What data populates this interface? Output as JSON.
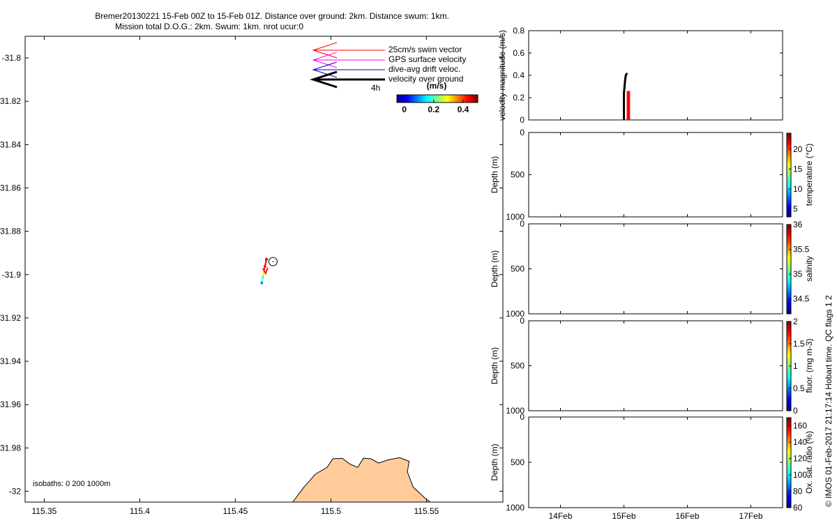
{
  "title": {
    "line1": "Bremer20130221 15-Feb 00Z to 15-Feb 01Z. Distance over ground: 2km. Distance swum: 1km.",
    "line2": "Mission total D.O.G.: 2km. Swum: 1km. nrot ucur:0"
  },
  "side_credit": "© IMOS 01-Feb-2017 21:17:14 Hobart time. QC flags 1  2",
  "chart_data": [
    {
      "type": "map",
      "xlim": [
        115.34,
        115.59
      ],
      "ylim": [
        -32.005,
        -31.79
      ],
      "xticks": [
        115.35,
        115.4,
        115.45,
        115.5,
        115.55
      ],
      "xtick_labels": [
        "115.35",
        "115.4",
        "115.45",
        "115.5",
        "115.55"
      ],
      "yticks": [
        -31.8,
        -31.82,
        -31.84,
        -31.86,
        -31.88,
        -31.9,
        -31.92,
        -31.94,
        -31.96,
        -31.98,
        -32
      ],
      "ytick_labels": [
        "-31.8",
        "31.82",
        "31.84",
        "31.86",
        "31.88",
        "-31.9",
        "31.92",
        "31.94",
        "31.96",
        "31.98",
        "-32"
      ],
      "isobaths_label": "isobaths: 0   200  1000m",
      "legend": {
        "swim": "25cm/s swim vector",
        "gps": "GPS surface velocity",
        "drift": "dive-avg drift veloc.",
        "dog": "velocity over ground",
        "time": "4h"
      },
      "legend_colors": {
        "swim": "#ff0000",
        "gps": "#ff00ff",
        "drift": "#0000cc",
        "dog": "#000000"
      },
      "colorbar": {
        "unit": "(m/s)",
        "range": [
          -0.05,
          0.5
        ],
        "ticks": [
          0,
          0.2,
          0.4
        ],
        "tick_labels": [
          "0",
          "0.2",
          "0.4"
        ]
      },
      "track": [
        {
          "lon": 115.4663,
          "lat": -31.8929,
          "speed": 0.45
        },
        {
          "lon": 115.4655,
          "lat": -31.8962,
          "speed": 0.42
        },
        {
          "lon": 115.4649,
          "lat": -31.8989,
          "speed": 0.3
        },
        {
          "lon": 115.4644,
          "lat": -31.9013,
          "speed": 0.2
        },
        {
          "lon": 115.4638,
          "lat": -31.9038,
          "speed": 0.1
        }
      ],
      "current_position": {
        "lon": 115.4697,
        "lat": -31.894
      },
      "land": {
        "color": "#ffcc99",
        "outline": [
          [
            115.48,
            -32.005
          ],
          [
            115.486,
            -31.998
          ],
          [
            115.492,
            -31.992
          ],
          [
            115.498,
            -31.989
          ],
          [
            115.501,
            -31.985
          ],
          [
            115.506,
            -31.9848
          ],
          [
            115.51,
            -31.9875
          ],
          [
            115.514,
            -31.989
          ],
          [
            115.517,
            -31.9848
          ],
          [
            115.521,
            -31.985
          ],
          [
            115.525,
            -31.987
          ],
          [
            115.53,
            -31.9855
          ],
          [
            115.536,
            -31.9845
          ],
          [
            115.541,
            -31.9862
          ],
          [
            115.54,
            -31.991
          ],
          [
            115.543,
            -31.998
          ],
          [
            115.549,
            -32.003
          ],
          [
            115.552,
            -32.005
          ]
        ]
      }
    },
    {
      "type": "line",
      "ylabel": "velocity magnitude (m/s)",
      "ylim": [
        0,
        0.8
      ],
      "yticks": [
        0,
        0.2,
        0.4,
        0.6,
        0.8
      ],
      "ytick_labels": [
        "0",
        "0.2",
        "0.4",
        "0.6",
        "0.8"
      ],
      "xlim": [
        13.5,
        17.5
      ],
      "series": [
        {
          "color": "#000000",
          "x": [
            15.0,
            15.0,
            15.02,
            15.03,
            15.05
          ],
          "y": [
            0.0,
            0.24,
            0.36,
            0.4,
            0.42
          ]
        },
        {
          "color": "#ff0000",
          "x": [
            15.06,
            15.06,
            15.08,
            15.08
          ],
          "y": [
            0.0,
            0.25,
            0.25,
            0.0
          ]
        }
      ]
    },
    {
      "type": "heatmap",
      "ylabel": "Depth (m)",
      "ylim": [
        0,
        1000
      ],
      "yticks": [
        0,
        500,
        1000
      ],
      "ytick_labels": [
        "0",
        "500",
        "1000"
      ],
      "xlim": [
        13.5,
        17.5
      ],
      "colorbar": {
        "label": "temperature (°C)",
        "range": [
          3,
          24
        ],
        "ticks": [
          5,
          10,
          15,
          20
        ],
        "tick_labels": [
          "5",
          "10",
          "15",
          "20"
        ]
      }
    },
    {
      "type": "heatmap",
      "ylabel": "Depth (m)",
      "ylim": [
        0,
        1000
      ],
      "yticks": [
        0,
        500,
        1000
      ],
      "ytick_labels": [
        "0",
        "500",
        "1000"
      ],
      "xlim": [
        13.5,
        17.5
      ],
      "colorbar": {
        "label": "salinity",
        "range": [
          34.2,
          36
        ],
        "ticks": [
          34.5,
          35,
          35.5,
          36
        ],
        "tick_labels": [
          "34.5",
          "35",
          "35.5",
          "36"
        ]
      }
    },
    {
      "type": "heatmap",
      "ylabel": "Depth (m)",
      "ylim": [
        0,
        1000
      ],
      "yticks": [
        0,
        500,
        1000
      ],
      "ytick_labels": [
        "0",
        "500",
        "1000"
      ],
      "xlim": [
        13.5,
        17.5
      ],
      "colorbar": {
        "label": "fluor. (mg m-3)",
        "range": [
          0,
          2
        ],
        "ticks": [
          0,
          0.5,
          1,
          1.5,
          2
        ],
        "tick_labels": [
          "0",
          "0.5",
          "1",
          "1.5",
          "2"
        ]
      }
    },
    {
      "type": "heatmap",
      "ylabel": "Depth (m)",
      "ylim": [
        0,
        1000
      ],
      "yticks": [
        0,
        500,
        1000
      ],
      "ytick_labels": [
        "0",
        "500",
        "1000"
      ],
      "xlim": [
        13.5,
        17.5
      ],
      "xticks": [
        14,
        15,
        16,
        17
      ],
      "xtick_labels": [
        "14Feb",
        "15Feb",
        "16Feb",
        "17Feb"
      ],
      "colorbar": {
        "label": "Ox. sat. ratio (%)",
        "range": [
          60,
          170
        ],
        "ticks": [
          60,
          80,
          100,
          120,
          140,
          160
        ],
        "tick_labels": [
          "60",
          "80",
          "100",
          "120",
          "140",
          "160"
        ]
      }
    }
  ]
}
